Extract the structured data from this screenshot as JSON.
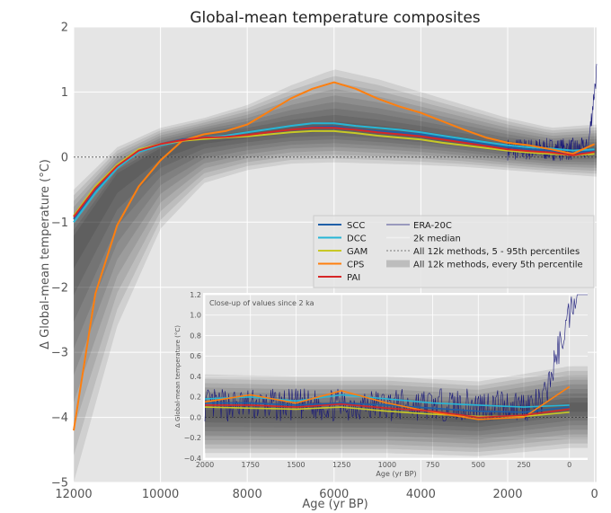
{
  "chart_data": [
    {
      "type": "area",
      "title": "Global-mean temperature composites",
      "xlabel": "Age (yr BP)",
      "ylabel": "Δ Global-mean temperature (°C)",
      "xlim": [
        12000,
        -50
      ],
      "ylim": [
        -5,
        2
      ],
      "x_reversed": true,
      "grid": true,
      "xticks": [
        12000,
        10000,
        8000,
        6000,
        4000,
        2000,
        0
      ],
      "yticks": [
        -5,
        -4,
        -3,
        -2,
        -1,
        0,
        1,
        2
      ],
      "reference_line": 0,
      "colors": {
        "SCC": "#1f5fa8",
        "DCC": "#27b6d6",
        "GAM": "#c8c826",
        "CPS": "#ff7f0e",
        "PAI": "#d62728",
        "ERA": "#1a1a7a",
        "band": "#000000"
      },
      "legend": {
        "placement": "center-right",
        "entries": [
          "SCC",
          "DCC",
          "GAM",
          "CPS",
          "PAI",
          "ERA-20C",
          "2k median",
          "All 12k methods, 5 - 95th percentiles",
          "All 12k methods, every 5th percentile"
        ]
      },
      "series": [
        {
          "name": "SCC",
          "x": [
            12000,
            11500,
            11000,
            10500,
            10000,
            9500,
            9000,
            8500,
            8000,
            7500,
            7000,
            6500,
            6000,
            5500,
            5000,
            4500,
            4000,
            3500,
            3000,
            2500,
            2000,
            1500,
            1000,
            500,
            0
          ],
          "values": [
            -0.95,
            -0.5,
            -0.15,
            0.1,
            0.2,
            0.27,
            0.3,
            0.3,
            0.33,
            0.37,
            0.42,
            0.46,
            0.47,
            0.43,
            0.4,
            0.38,
            0.35,
            0.3,
            0.25,
            0.2,
            0.15,
            0.12,
            0.1,
            0.06,
            0.1
          ]
        },
        {
          "name": "DCC",
          "x": [
            12000,
            11500,
            11000,
            10500,
            10000,
            9500,
            9000,
            8500,
            8000,
            7500,
            7000,
            6500,
            6000,
            5500,
            5000,
            4500,
            4000,
            3500,
            3000,
            2500,
            2000,
            1500,
            1000,
            500,
            0
          ],
          "values": [
            -1.0,
            -0.55,
            -0.17,
            0.08,
            0.18,
            0.25,
            0.3,
            0.33,
            0.38,
            0.43,
            0.48,
            0.52,
            0.52,
            0.48,
            0.45,
            0.42,
            0.38,
            0.33,
            0.28,
            0.23,
            0.18,
            0.15,
            0.13,
            0.1,
            0.12
          ]
        },
        {
          "name": "GAM",
          "x": [
            12000,
            11500,
            11000,
            10500,
            10000,
            9500,
            9000,
            8500,
            8000,
            7500,
            7000,
            6500,
            6000,
            5500,
            5000,
            4500,
            4000,
            3500,
            3000,
            2500,
            2000,
            1500,
            1000,
            500,
            0
          ],
          "values": [
            -0.9,
            -0.45,
            -0.12,
            0.12,
            0.2,
            0.25,
            0.28,
            0.3,
            0.32,
            0.35,
            0.38,
            0.4,
            0.4,
            0.37,
            0.33,
            0.3,
            0.27,
            0.22,
            0.18,
            0.14,
            0.1,
            0.07,
            0.05,
            0.03,
            0.05
          ]
        },
        {
          "name": "CPS",
          "x": [
            12000,
            11500,
            11000,
            10500,
            10000,
            9500,
            9000,
            8500,
            8000,
            7500,
            7000,
            6500,
            6000,
            5500,
            5000,
            4500,
            4000,
            3500,
            3000,
            2500,
            2000,
            1500,
            1000,
            500,
            0
          ],
          "values": [
            -4.2,
            -2.1,
            -1.05,
            -0.45,
            -0.05,
            0.25,
            0.35,
            0.4,
            0.5,
            0.7,
            0.9,
            1.05,
            1.15,
            1.05,
            0.9,
            0.78,
            0.68,
            0.55,
            0.42,
            0.3,
            0.22,
            0.18,
            0.12,
            0.05,
            0.2
          ]
        },
        {
          "name": "PAI",
          "x": [
            12000,
            11500,
            11000,
            10500,
            10000,
            9500,
            9000,
            8500,
            8000,
            7500,
            7000,
            6500,
            6000,
            5500,
            5000,
            4500,
            4000,
            3500,
            3000,
            2500,
            2000,
            1500,
            1000,
            500,
            0
          ],
          "values": [
            -0.92,
            -0.48,
            -0.14,
            0.1,
            0.2,
            0.26,
            0.3,
            0.31,
            0.34,
            0.38,
            0.42,
            0.45,
            0.45,
            0.42,
            0.38,
            0.35,
            0.32,
            0.27,
            0.22,
            0.17,
            0.12,
            0.09,
            0.07,
            0.03,
            0.08
          ]
        }
      ],
      "band_median": {
        "x": [
          12000,
          11000,
          10000,
          9000,
          8000,
          7000,
          6000,
          5000,
          4000,
          3000,
          2000,
          1000,
          0
        ],
        "values": [
          -1.3,
          -0.3,
          0.1,
          0.28,
          0.35,
          0.42,
          0.45,
          0.4,
          0.33,
          0.24,
          0.15,
          0.08,
          0.1
        ]
      },
      "band_lower_5": {
        "x": [
          12000,
          11000,
          10000,
          9000,
          8000,
          7000,
          6000,
          5000,
          4000,
          3000,
          2000,
          1000,
          0
        ],
        "values": [
          -5.0,
          -2.6,
          -1.1,
          -0.4,
          -0.2,
          -0.1,
          -0.08,
          -0.1,
          -0.12,
          -0.15,
          -0.2,
          -0.25,
          -0.3
        ]
      },
      "band_upper_95": {
        "x": [
          12000,
          11000,
          10000,
          9000,
          8000,
          7000,
          6000,
          5000,
          4000,
          3000,
          2000,
          1000,
          0
        ],
        "values": [
          -0.5,
          0.15,
          0.45,
          0.6,
          0.8,
          1.1,
          1.35,
          1.2,
          1.0,
          0.8,
          0.6,
          0.45,
          0.5
        ]
      }
    },
    {
      "type": "area",
      "title": "Close-up of values since 2 ka",
      "xlabel": "Age (yr BP)",
      "ylabel": "Δ Global-mean temperature (°C)",
      "xlim": [
        2000,
        -100
      ],
      "ylim": [
        -0.4,
        1.2
      ],
      "x_reversed": true,
      "grid": true,
      "xticks": [
        2000,
        1750,
        1500,
        1250,
        1000,
        750,
        500,
        250,
        0
      ],
      "yticks": [
        -0.4,
        -0.2,
        0.0,
        0.2,
        0.4,
        0.6,
        0.8,
        1.0,
        1.2
      ],
      "reference_line": 0,
      "series": [
        {
          "name": "SCC",
          "x": [
            2000,
            1750,
            1500,
            1250,
            1000,
            750,
            500,
            250,
            0
          ],
          "values": [
            0.14,
            0.14,
            0.12,
            0.14,
            0.12,
            0.09,
            0.06,
            0.05,
            0.1
          ]
        },
        {
          "name": "DCC",
          "x": [
            2000,
            1750,
            1500,
            1250,
            1000,
            750,
            500,
            250,
            0
          ],
          "values": [
            0.18,
            0.2,
            0.16,
            0.22,
            0.18,
            0.14,
            0.12,
            0.1,
            0.12
          ]
        },
        {
          "name": "GAM",
          "x": [
            2000,
            1750,
            1500,
            1250,
            1000,
            750,
            500,
            250,
            0
          ],
          "values": [
            0.1,
            0.09,
            0.08,
            0.1,
            0.06,
            0.03,
            0.01,
            0.01,
            0.05
          ]
        },
        {
          "name": "CPS",
          "x": [
            2000,
            1750,
            1500,
            1250,
            1000,
            750,
            500,
            250,
            0
          ],
          "values": [
            0.15,
            0.22,
            0.14,
            0.26,
            0.14,
            0.05,
            -0.02,
            0.0,
            0.3
          ]
        },
        {
          "name": "PAI",
          "x": [
            2000,
            1750,
            1500,
            1250,
            1000,
            750,
            500,
            250,
            0
          ],
          "values": [
            0.12,
            0.12,
            0.1,
            0.13,
            0.09,
            0.06,
            0.0,
            0.02,
            0.08
          ]
        }
      ],
      "band_lower_5": {
        "x": [
          2000,
          1500,
          1000,
          500,
          0
        ],
        "values": [
          -0.35,
          -0.35,
          -0.35,
          -0.38,
          -0.3
        ]
      },
      "band_upper_95": {
        "x": [
          2000,
          1500,
          1000,
          500,
          0
        ],
        "values": [
          0.42,
          0.4,
          0.4,
          0.35,
          0.5
        ]
      }
    }
  ]
}
